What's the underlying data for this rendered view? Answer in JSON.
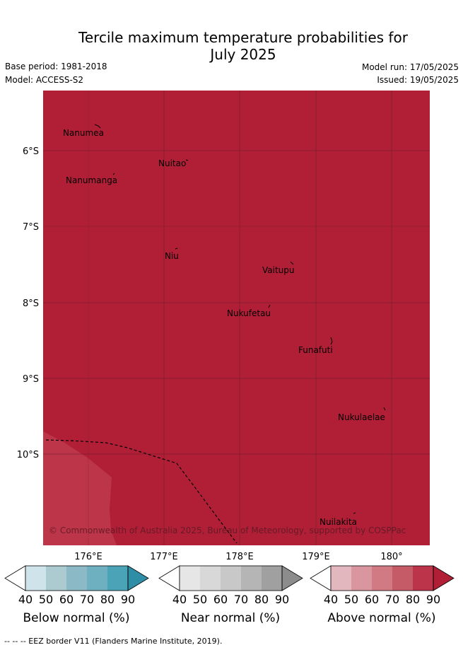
{
  "title_line1": "Tercile maximum temperature probabilities for",
  "title_line2": "July 2025",
  "header": {
    "base_period": "Base period: 1981-2018",
    "model": "Model: ACCESS-S2",
    "model_run": "Model run: 17/05/2025",
    "issued": "Issued: 19/05/2025"
  },
  "map": {
    "fill_color": "#B11F37",
    "lighter_fill_color": "#BD3549",
    "y_axis_labels": [
      "6°S",
      "7°S",
      "8°S",
      "9°S",
      "10°S"
    ],
    "x_axis_labels": [
      "176°E",
      "177°E",
      "178°E",
      "179°E",
      "180°"
    ],
    "places": [
      "Nanumea",
      "Nuitao",
      "Nanumanga",
      "Niu",
      "Vaitupu",
      "Nukufetau",
      "Funafuti",
      "Nukulaelae",
      "Nuilakita"
    ],
    "copyright": "© Commonwealth of Australia 2025, Bureau of Meteorology, supported by COSPPac"
  },
  "colorbars": [
    {
      "label": "Below normal (%)",
      "ticks": [
        "40",
        "50",
        "60",
        "70",
        "80",
        "90"
      ],
      "colors": [
        "#CFE3EA",
        "#ABCBD1",
        "#8CB9C6",
        "#6EAFC0",
        "#4AA3B6",
        "#2F8EA5"
      ]
    },
    {
      "label": "Near normal (%)",
      "ticks": [
        "40",
        "50",
        "60",
        "70",
        "80",
        "90"
      ],
      "colors": [
        "#E6E6E6",
        "#D8D8D8",
        "#C8C8C8",
        "#B5B5B5",
        "#A0A0A0",
        "#8C8C8C"
      ]
    },
    {
      "label": "Above normal (%)",
      "ticks": [
        "40",
        "50",
        "60",
        "70",
        "80",
        "90"
      ],
      "colors": [
        "#E2B8BE",
        "#D9969E",
        "#D27A84",
        "#C65B68",
        "#BC3449",
        "#B11F37"
      ]
    }
  ],
  "footer": "--  --  -- EEZ border V11 (Flanders Marine Institute, 2019)."
}
